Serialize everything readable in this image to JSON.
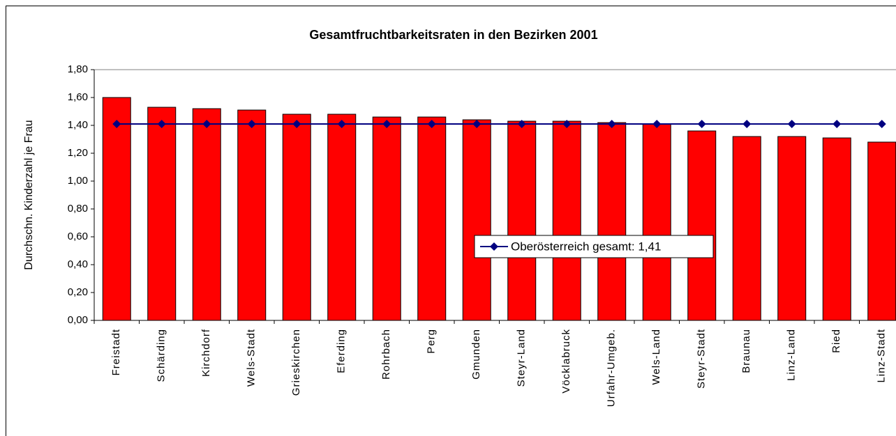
{
  "chart_data": {
    "type": "bar",
    "title": "Gesamtfruchtbarkeitsraten in den Bezirken 2001",
    "y_label": "Durchschn. Kinderzahl je Frau",
    "categories": [
      "Freistadt",
      "Schärding",
      "Kirchdorf",
      "Wels-Stadt",
      "Grieskirchen",
      "Eferding",
      "Rohrbach",
      "Perg",
      "Gmunden",
      "Steyr-Land",
      "Vöcklabruck",
      "Urfahr-Umgeb.",
      "Wels-Land",
      "Steyr-Stadt",
      "Braunau",
      "Linz-Land",
      "Ried",
      "Linz-Stadt"
    ],
    "values": [
      1.6,
      1.53,
      1.52,
      1.51,
      1.48,
      1.48,
      1.46,
      1.46,
      1.44,
      1.43,
      1.43,
      1.42,
      1.41,
      1.36,
      1.32,
      1.32,
      1.31,
      1.28
    ],
    "color": "#ff0000",
    "series": [
      {
        "name": "Oberösterreich gesamt: 1,41",
        "color": "#000080",
        "type": "line",
        "values": [
          1.41,
          1.41,
          1.41,
          1.41,
          1.41,
          1.41,
          1.41,
          1.41,
          1.41,
          1.41,
          1.41,
          1.41,
          1.41,
          1.41,
          1.41,
          1.41,
          1.41,
          1.41
        ]
      }
    ],
    "ylim": [
      0,
      1.8
    ],
    "yticks": [
      {
        "value": 0,
        "label": "0,00"
      },
      {
        "value": 0.2,
        "label": "0,20"
      },
      {
        "value": 0.4,
        "label": "0,40"
      },
      {
        "value": 0.6,
        "label": "0,60"
      },
      {
        "value": 0.8,
        "label": "0,80"
      },
      {
        "value": 1.0,
        "label": "1,00"
      },
      {
        "value": 1.2,
        "label": "1,20"
      },
      {
        "value": 1.4,
        "label": "1,40"
      },
      {
        "value": 1.6,
        "label": "1,60"
      },
      {
        "value": 1.8,
        "label": "1,80"
      }
    ],
    "grid": false,
    "legend": "center"
  }
}
